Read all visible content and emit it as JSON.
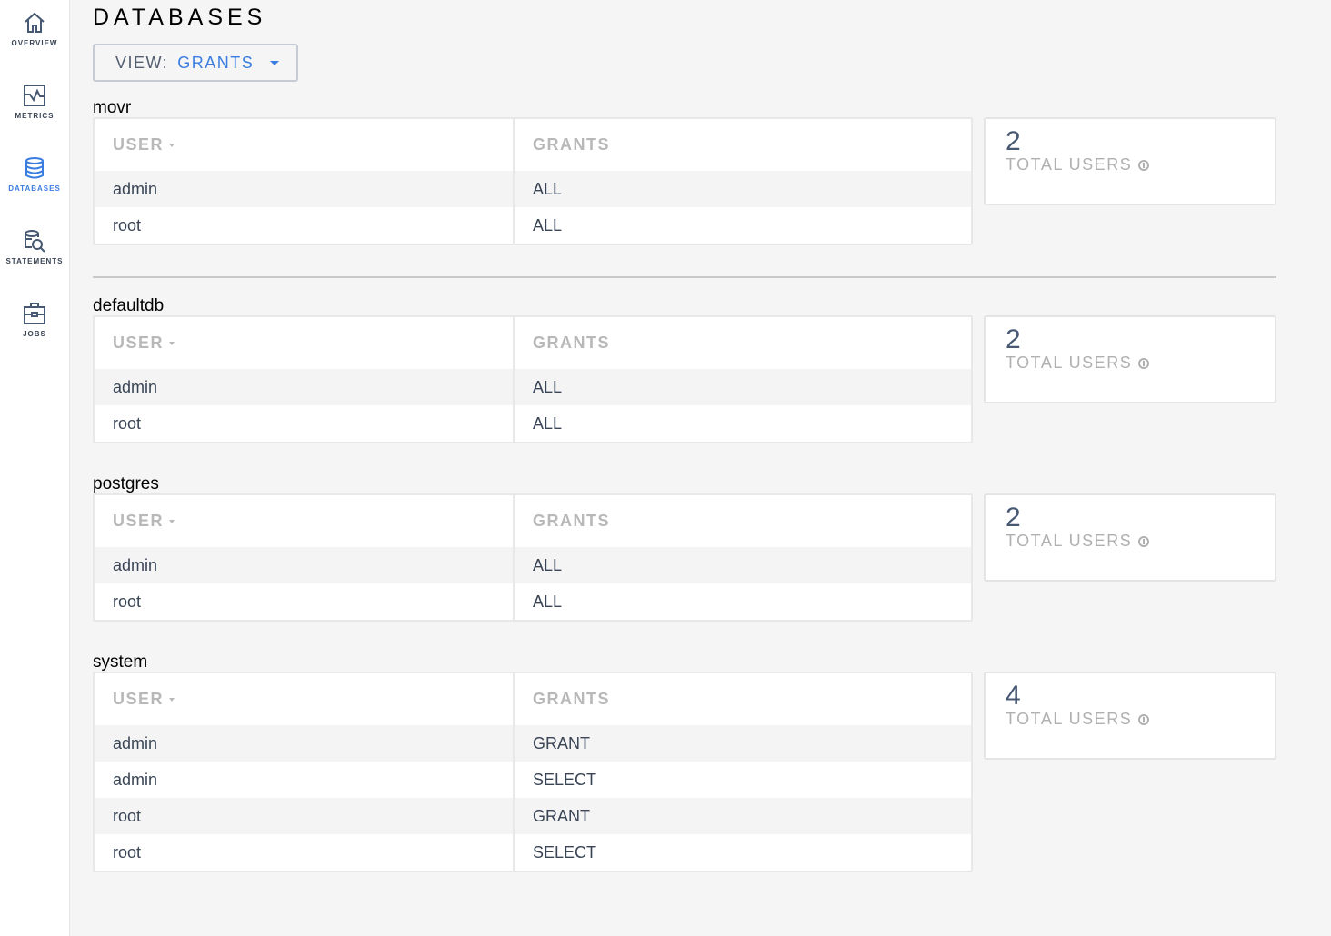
{
  "sidebar": {
    "items": [
      {
        "label": "OVERVIEW",
        "icon": "home-icon"
      },
      {
        "label": "METRICS",
        "icon": "metrics-icon"
      },
      {
        "label": "DATABASES",
        "icon": "database-icon",
        "active": true
      },
      {
        "label": "STATEMENTS",
        "icon": "statements-icon"
      },
      {
        "label": "JOBS",
        "icon": "jobs-icon"
      }
    ]
  },
  "page": {
    "title": "DATABASES",
    "view_label": "VIEW:",
    "view_value": "GRANTS"
  },
  "columns": {
    "user": "USER",
    "grants": "GRANTS"
  },
  "summary_label": "TOTAL USERS",
  "databases": [
    {
      "name": "movr",
      "total_users": "2",
      "rows": [
        [
          "admin",
          "ALL"
        ],
        [
          "root",
          "ALL"
        ]
      ]
    },
    {
      "name": "defaultdb",
      "total_users": "2",
      "rows": [
        [
          "admin",
          "ALL"
        ],
        [
          "root",
          "ALL"
        ]
      ]
    },
    {
      "name": "postgres",
      "total_users": "2",
      "rows": [
        [
          "admin",
          "ALL"
        ],
        [
          "root",
          "ALL"
        ]
      ]
    },
    {
      "name": "system",
      "total_users": "4",
      "rows": [
        [
          "admin",
          "GRANT"
        ],
        [
          "admin",
          "SELECT"
        ],
        [
          "root",
          "GRANT"
        ],
        [
          "root",
          "SELECT"
        ]
      ]
    }
  ],
  "colors": {
    "accent": "#3a7de1",
    "nav": "#394455"
  }
}
